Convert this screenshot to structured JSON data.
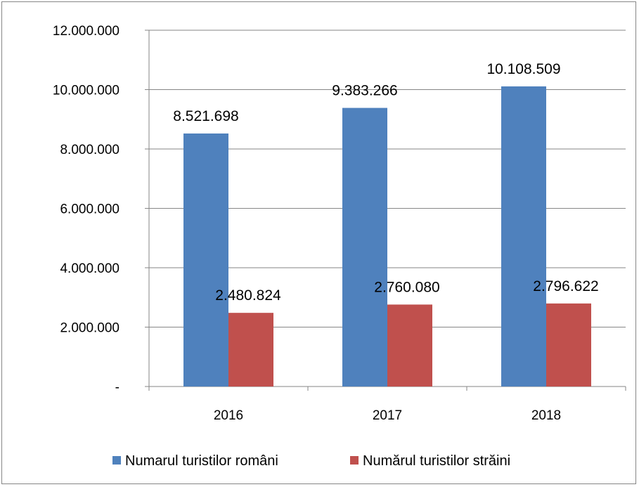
{
  "chart_data": {
    "type": "bar",
    "categories": [
      "2016",
      "2017",
      "2018"
    ],
    "series": [
      {
        "name": "Numarul turistilor români",
        "values": [
          8521698,
          9383266,
          10108509
        ],
        "labels": [
          "8.521.698",
          "9.383.266",
          "10.108.509"
        ],
        "color": "#4F81BD"
      },
      {
        "name": "Numărul turistilor străini",
        "values": [
          2480824,
          2760080,
          2796622
        ],
        "labels": [
          "2.480.824",
          "2.760.080",
          "2.796.622"
        ],
        "color": "#C0504D"
      }
    ],
    "ylim": [
      0,
      12000000
    ],
    "yticks": [
      0,
      2000000,
      4000000,
      6000000,
      8000000,
      10000000,
      12000000
    ],
    "ytick_labels": [
      "-",
      "2.000.000",
      "4.000.000",
      "6.000.000",
      "8.000.000",
      "10.000.000",
      "12.000.000"
    ],
    "grid": true,
    "legend_position": "bottom"
  }
}
